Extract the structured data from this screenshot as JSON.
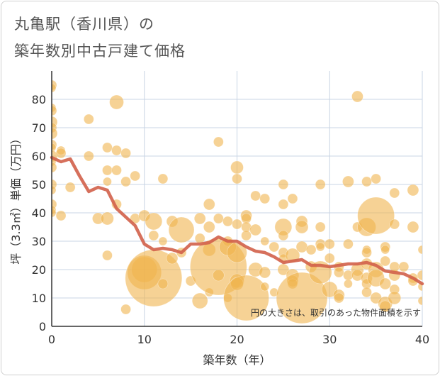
{
  "title_line1": "丸亀駅（香川県）の",
  "title_line2": "築年数別中古戸建て価格",
  "chart_data": {
    "type": "scatter",
    "title": "丸亀駅（香川県）の築年数別中古戸建て価格",
    "xlabel": "築年数（年）",
    "ylabel": "坪（3.3㎡）単価（万円）",
    "xlim": [
      0,
      40
    ],
    "ylim": [
      0,
      90
    ],
    "xticks": [
      0,
      10,
      20,
      30,
      40
    ],
    "yticks": [
      0,
      10,
      20,
      30,
      40,
      50,
      60,
      70,
      80
    ],
    "grid": true,
    "note": "円の大きさは、取引のあった物件面積を示す",
    "colors": {
      "bubble": "#f0b44e",
      "trend": "#d2604a",
      "grid": "#c8d4e4",
      "axis": "#333333"
    },
    "trend_line": {
      "x": [
        0,
        1,
        2,
        3,
        4,
        5,
        6,
        7,
        8,
        9,
        10,
        11,
        12,
        13,
        14,
        15,
        16,
        17,
        18,
        19,
        20,
        21,
        22,
        23,
        24,
        25,
        26,
        27,
        28,
        29,
        30,
        31,
        32,
        33,
        34,
        35,
        36,
        37,
        38,
        39,
        40
      ],
      "y": [
        59.5,
        58,
        59,
        53,
        47.5,
        49,
        48,
        41.5,
        38.5,
        35.5,
        29,
        27,
        27.5,
        27,
        26,
        29,
        29,
        29.5,
        31.5,
        30,
        30,
        28,
        26.5,
        26,
        24.5,
        22.5,
        23,
        23.5,
        21.5,
        21.5,
        21,
        21.5,
        22,
        22,
        22.5,
        21.5,
        19.5,
        19,
        18.5,
        17,
        15
      ]
    },
    "bubbles": [
      {
        "x": 0,
        "y": 85,
        "s": 7
      },
      {
        "x": 0,
        "y": 84,
        "s": 6
      },
      {
        "x": 0,
        "y": 77,
        "s": 6
      },
      {
        "x": 0,
        "y": 76,
        "s": 7
      },
      {
        "x": 0,
        "y": 72,
        "s": 8
      },
      {
        "x": 0,
        "y": 70,
        "s": 7
      },
      {
        "x": 0,
        "y": 68,
        "s": 8
      },
      {
        "x": 0,
        "y": 64,
        "s": 7
      },
      {
        "x": 0,
        "y": 63,
        "s": 6
      },
      {
        "x": 0,
        "y": 60,
        "s": 8
      },
      {
        "x": 0,
        "y": 58,
        "s": 6
      },
      {
        "x": 0,
        "y": 56,
        "s": 7
      },
      {
        "x": 0,
        "y": 50,
        "s": 7
      },
      {
        "x": 0,
        "y": 48,
        "s": 6
      },
      {
        "x": 0,
        "y": 43,
        "s": 7
      },
      {
        "x": 0,
        "y": 41,
        "s": 6
      },
      {
        "x": 0,
        "y": 40,
        "s": 6
      },
      {
        "x": 1,
        "y": 62,
        "s": 6
      },
      {
        "x": 1,
        "y": 61,
        "s": 7
      },
      {
        "x": 1,
        "y": 39,
        "s": 7
      },
      {
        "x": 2,
        "y": 49,
        "s": 7
      },
      {
        "x": 4,
        "y": 73,
        "s": 7
      },
      {
        "x": 4,
        "y": 60,
        "s": 7
      },
      {
        "x": 5,
        "y": 38,
        "s": 8
      },
      {
        "x": 6,
        "y": 63,
        "s": 7
      },
      {
        "x": 6,
        "y": 55,
        "s": 7
      },
      {
        "x": 6,
        "y": 51,
        "s": 6
      },
      {
        "x": 6,
        "y": 38,
        "s": 9
      },
      {
        "x": 6,
        "y": 25,
        "s": 7
      },
      {
        "x": 7,
        "y": 79,
        "s": 10
      },
      {
        "x": 7,
        "y": 62,
        "s": 7
      },
      {
        "x": 7,
        "y": 55,
        "s": 7
      },
      {
        "x": 7,
        "y": 43,
        "s": 7
      },
      {
        "x": 8,
        "y": 61,
        "s": 7
      },
      {
        "x": 8,
        "y": 51,
        "s": 7
      },
      {
        "x": 8,
        "y": 6,
        "s": 7
      },
      {
        "x": 9,
        "y": 53,
        "s": 7
      },
      {
        "x": 9,
        "y": 38,
        "s": 7
      },
      {
        "x": 10,
        "y": 39,
        "s": 8
      },
      {
        "x": 10,
        "y": 20,
        "s": 18
      },
      {
        "x": 10,
        "y": 19,
        "s": 24
      },
      {
        "x": 11,
        "y": 17,
        "s": 40
      },
      {
        "x": 11,
        "y": 37,
        "s": 12
      },
      {
        "x": 11,
        "y": 32,
        "s": 7
      },
      {
        "x": 12,
        "y": 52,
        "s": 7
      },
      {
        "x": 12,
        "y": 30,
        "s": 6
      },
      {
        "x": 12,
        "y": 15,
        "s": 7
      },
      {
        "x": 13,
        "y": 37,
        "s": 8
      },
      {
        "x": 13,
        "y": 24,
        "s": 8
      },
      {
        "x": 14,
        "y": 34,
        "s": 18
      },
      {
        "x": 14,
        "y": 26,
        "s": 7
      },
      {
        "x": 15,
        "y": 16,
        "s": 7
      },
      {
        "x": 16,
        "y": 38,
        "s": 8
      },
      {
        "x": 16,
        "y": 31,
        "s": 7
      },
      {
        "x": 16,
        "y": 9,
        "s": 11
      },
      {
        "x": 17,
        "y": 43,
        "s": 8
      },
      {
        "x": 17,
        "y": 35,
        "s": 8
      },
      {
        "x": 17,
        "y": 27,
        "s": 9
      },
      {
        "x": 17,
        "y": 12,
        "s": 6
      },
      {
        "x": 18,
        "y": 65,
        "s": 7
      },
      {
        "x": 18,
        "y": 38,
        "s": 7
      },
      {
        "x": 18,
        "y": 21,
        "s": 40
      },
      {
        "x": 18,
        "y": 18,
        "s": 8
      },
      {
        "x": 19,
        "y": 37,
        "s": 7
      },
      {
        "x": 19,
        "y": 30,
        "s": 7
      },
      {
        "x": 19,
        "y": 28,
        "s": 12
      },
      {
        "x": 19,
        "y": 10,
        "s": 6
      },
      {
        "x": 20,
        "y": 56,
        "s": 9
      },
      {
        "x": 20,
        "y": 52,
        "s": 7
      },
      {
        "x": 20,
        "y": 36,
        "s": 7
      },
      {
        "x": 20,
        "y": 26,
        "s": 14
      },
      {
        "x": 20,
        "y": 16,
        "s": 10
      },
      {
        "x": 20,
        "y": 15,
        "s": 9
      },
      {
        "x": 21,
        "y": 39,
        "s": 8
      },
      {
        "x": 21,
        "y": 38,
        "s": 7
      },
      {
        "x": 21,
        "y": 35,
        "s": 7
      },
      {
        "x": 21,
        "y": 32,
        "s": 7
      },
      {
        "x": 21,
        "y": 10,
        "s": 32
      },
      {
        "x": 22,
        "y": 46,
        "s": 7
      },
      {
        "x": 22,
        "y": 34,
        "s": 8
      },
      {
        "x": 22,
        "y": 20,
        "s": 10
      },
      {
        "x": 23,
        "y": 45,
        "s": 7
      },
      {
        "x": 23,
        "y": 30,
        "s": 6
      },
      {
        "x": 23,
        "y": 19,
        "s": 8
      },
      {
        "x": 23,
        "y": 14,
        "s": 6
      },
      {
        "x": 24,
        "y": 28,
        "s": 7
      },
      {
        "x": 24,
        "y": 12,
        "s": 6
      },
      {
        "x": 25,
        "y": 50,
        "s": 7
      },
      {
        "x": 25,
        "y": 43,
        "s": 7
      },
      {
        "x": 25,
        "y": 35,
        "s": 12
      },
      {
        "x": 25,
        "y": 32,
        "s": 7
      },
      {
        "x": 25,
        "y": 26,
        "s": 7
      },
      {
        "x": 25,
        "y": 24,
        "s": 6
      },
      {
        "x": 25,
        "y": 20,
        "s": 8
      },
      {
        "x": 26,
        "y": 45,
        "s": 7
      },
      {
        "x": 26,
        "y": 25,
        "s": 10
      },
      {
        "x": 26,
        "y": 18,
        "s": 9
      },
      {
        "x": 26,
        "y": 16,
        "s": 8
      },
      {
        "x": 26,
        "y": 15,
        "s": 7
      },
      {
        "x": 27,
        "y": 37,
        "s": 8
      },
      {
        "x": 27,
        "y": 35,
        "s": 9
      },
      {
        "x": 27,
        "y": 28,
        "s": 8
      },
      {
        "x": 27,
        "y": 10,
        "s": 36
      },
      {
        "x": 28,
        "y": 27,
        "s": 7
      },
      {
        "x": 28,
        "y": 21,
        "s": 8
      },
      {
        "x": 29,
        "y": 50,
        "s": 7
      },
      {
        "x": 29,
        "y": 35,
        "s": 7
      },
      {
        "x": 29,
        "y": 29,
        "s": 7
      },
      {
        "x": 29,
        "y": 28,
        "s": 6
      },
      {
        "x": 29,
        "y": 19,
        "s": 16
      },
      {
        "x": 30,
        "y": 29,
        "s": 7
      },
      {
        "x": 30,
        "y": 24,
        "s": 7
      },
      {
        "x": 30,
        "y": 13,
        "s": 11
      },
      {
        "x": 31,
        "y": 21,
        "s": 7
      },
      {
        "x": 31,
        "y": 19,
        "s": 7
      },
      {
        "x": 31,
        "y": 11,
        "s": 8
      },
      {
        "x": 31,
        "y": 10,
        "s": 7
      },
      {
        "x": 32,
        "y": 51,
        "s": 8
      },
      {
        "x": 32,
        "y": 29,
        "s": 7
      },
      {
        "x": 32,
        "y": 18,
        "s": 7
      },
      {
        "x": 32,
        "y": 15,
        "s": 6
      },
      {
        "x": 33,
        "y": 81,
        "s": 8
      },
      {
        "x": 33,
        "y": 35,
        "s": 7
      },
      {
        "x": 33,
        "y": 20,
        "s": 9
      },
      {
        "x": 33,
        "y": 18,
        "s": 8
      },
      {
        "x": 34,
        "y": 51,
        "s": 7
      },
      {
        "x": 34,
        "y": 35,
        "s": 13
      },
      {
        "x": 34,
        "y": 27,
        "s": 6
      },
      {
        "x": 34,
        "y": 26,
        "s": 7
      },
      {
        "x": 34,
        "y": 22,
        "s": 8
      },
      {
        "x": 34,
        "y": 17,
        "s": 8
      },
      {
        "x": 34,
        "y": 15,
        "s": 7
      },
      {
        "x": 34,
        "y": 12,
        "s": 7
      },
      {
        "x": 35,
        "y": 52,
        "s": 7
      },
      {
        "x": 35,
        "y": 39,
        "s": 26
      },
      {
        "x": 35,
        "y": 20,
        "s": 11
      },
      {
        "x": 35,
        "y": 17,
        "s": 12
      },
      {
        "x": 35,
        "y": 10,
        "s": 8
      },
      {
        "x": 36,
        "y": 28,
        "s": 7
      },
      {
        "x": 36,
        "y": 27,
        "s": 6
      },
      {
        "x": 36,
        "y": 23,
        "s": 7
      },
      {
        "x": 36,
        "y": 15,
        "s": 8
      },
      {
        "x": 36,
        "y": 8,
        "s": 10
      },
      {
        "x": 36,
        "y": 7,
        "s": 8
      },
      {
        "x": 37,
        "y": 47,
        "s": 7
      },
      {
        "x": 37,
        "y": 36,
        "s": 7
      },
      {
        "x": 37,
        "y": 21,
        "s": 7
      },
      {
        "x": 37,
        "y": 18,
        "s": 8
      },
      {
        "x": 37,
        "y": 13,
        "s": 7
      },
      {
        "x": 37,
        "y": 10,
        "s": 9
      },
      {
        "x": 38,
        "y": 21,
        "s": 7
      },
      {
        "x": 39,
        "y": 48,
        "s": 8
      },
      {
        "x": 39,
        "y": 35,
        "s": 8
      },
      {
        "x": 39,
        "y": 17,
        "s": 7
      },
      {
        "x": 39,
        "y": 16,
        "s": 7
      },
      {
        "x": 40,
        "y": 27,
        "s": 6
      },
      {
        "x": 40,
        "y": 18,
        "s": 7
      },
      {
        "x": 40,
        "y": 14,
        "s": 6
      },
      {
        "x": 40,
        "y": 9,
        "s": 6
      }
    ]
  }
}
